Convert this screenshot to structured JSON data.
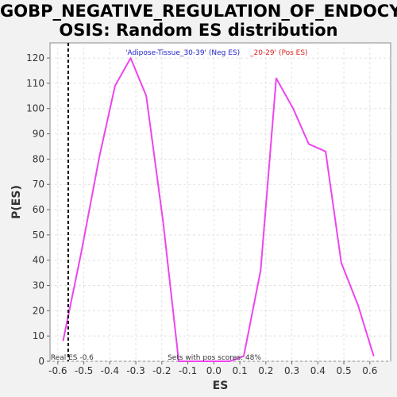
{
  "chart_data": {
    "type": "line",
    "title_lines": [
      "GOBP_NEGATIVE_REGULATION_OF_ENDOCYT",
      "OSIS: Random ES distribution"
    ],
    "xlabel": "ES",
    "ylabel": "P(ES)",
    "xlim": [
      -0.63,
      0.68
    ],
    "ylim": [
      0,
      126
    ],
    "xticks": [
      "-0.6",
      "-0.5",
      "-0.4",
      "-0.3",
      "-0.2",
      "-0.1",
      "0.0",
      "0.1",
      "0.2",
      "0.3",
      "0.4",
      "0.5",
      "0.6"
    ],
    "xtick_values": [
      -0.6,
      -0.5,
      -0.4,
      -0.3,
      -0.2,
      -0.1,
      0.0,
      0.1,
      0.2,
      0.3,
      0.4,
      0.5,
      0.6
    ],
    "yticks": [
      "0",
      "10",
      "20",
      "30",
      "40",
      "50",
      "60",
      "70",
      "80",
      "90",
      "100",
      "110",
      "120"
    ],
    "ytick_values": [
      0,
      10,
      20,
      30,
      40,
      50,
      60,
      70,
      80,
      90,
      100,
      110,
      120
    ],
    "grid": true,
    "series": [
      {
        "color": "#ee44ee",
        "x": [
          -0.58,
          -0.51,
          -0.44,
          -0.38,
          -0.32,
          -0.26,
          -0.195,
          -0.135,
          -0.07,
          0.0,
          0.06,
          0.115,
          0.18,
          0.24,
          0.305,
          0.365,
          0.43,
          0.49,
          0.555,
          0.615
        ],
        "y": [
          8,
          43,
          81,
          109,
          120,
          105,
          55,
          0,
          0,
          0,
          0,
          2,
          36,
          112,
          100,
          86,
          83,
          39,
          22,
          2
        ]
      }
    ],
    "real_es": {
      "value": -0.56,
      "label": "Real ES -0.6"
    },
    "annotations": {
      "neg_label": "'Adipose-Tissue_30-39' (Neg ES)",
      "pos_label": "_20-29' (Pos ES)",
      "pos_scores": "Sets with pos scores: 48%"
    },
    "colors": {
      "line": "#ee44ee",
      "neg_label": "#2222cc",
      "pos_label": "#dd2222",
      "plot_bg": "#ffffff",
      "page_bg": "#f2f2f2"
    }
  }
}
